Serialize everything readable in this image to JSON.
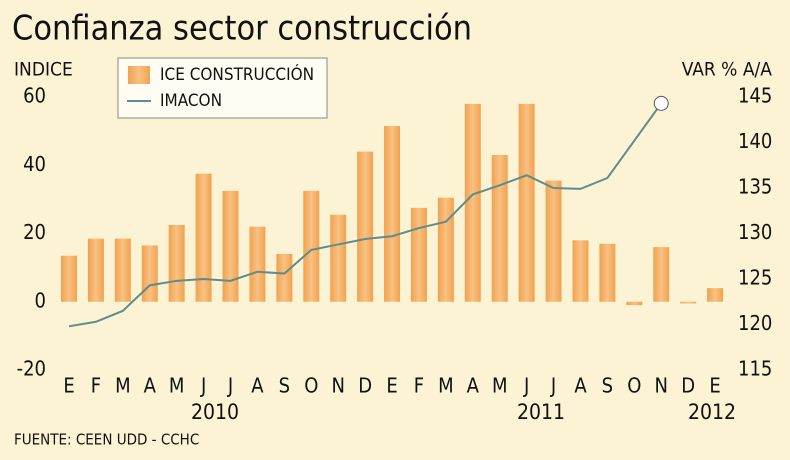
{
  "chart_data": {
    "type": "bar_line",
    "title": "Confianza sector construcción",
    "y_label": "INDICE",
    "y2_label": "VAR % A/A",
    "source": "FUENTE: CEEN UDD - CCHC",
    "categories": [
      "E",
      "F",
      "M",
      "A",
      "M",
      "J",
      "J",
      "A",
      "S",
      "O",
      "N",
      "D",
      "E",
      "F",
      "M",
      "A",
      "M",
      "J",
      "J",
      "A",
      "S",
      "O",
      "N",
      "D",
      "E"
    ],
    "years": [
      "2010",
      "2011",
      "2012"
    ],
    "series": [
      {
        "name": "ICE CONSTRUCCIÓN",
        "type": "bar",
        "color": "#f2a24e",
        "values": [
          13.5,
          18.5,
          18.5,
          16.5,
          22.5,
          37.5,
          32.5,
          22,
          14,
          32.5,
          25.5,
          44,
          51.5,
          27.5,
          30.5,
          58,
          43,
          58,
          35.5,
          18,
          17,
          -1,
          16,
          -0.5,
          4
        ]
      },
      {
        "name": "IMACON",
        "type": "line",
        "color": "#5f8c8c",
        "axis": "y2",
        "values": [
          119.8,
          120.3,
          121.5,
          124.3,
          124.8,
          125.0,
          124.8,
          125.8,
          125.6,
          128.2,
          128.8,
          129.4,
          129.7,
          130.6,
          131.3,
          134.3,
          135.3,
          136.4,
          135.0,
          134.9,
          136.1,
          140.2,
          144.3,
          null,
          null
        ]
      }
    ],
    "ylim": [
      -20,
      60
    ],
    "yticks": [
      -20,
      0,
      20,
      40,
      60
    ],
    "y2lim": [
      115,
      145
    ],
    "y2ticks": [
      115,
      120,
      125,
      130,
      135,
      140,
      145
    ]
  }
}
